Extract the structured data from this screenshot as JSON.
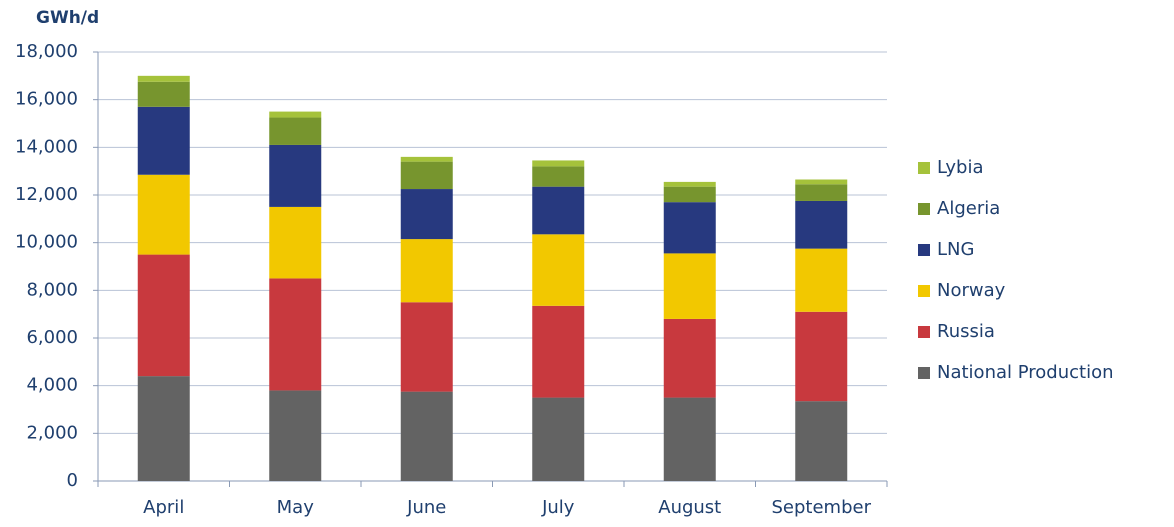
{
  "chart_data": {
    "type": "stacked-bar",
    "ylabel": "GWh/d",
    "categories": [
      "April",
      "May",
      "June",
      "July",
      "August",
      "September"
    ],
    "series": [
      {
        "name": "National Production",
        "color": "#636363",
        "values": [
          4400,
          3800,
          3750,
          3500,
          3500,
          3350
        ]
      },
      {
        "name": "Russia",
        "color": "#c8393e",
        "values": [
          5100,
          4700,
          3750,
          3850,
          3300,
          3750
        ]
      },
      {
        "name": "Norway",
        "color": "#f2c800",
        "values": [
          3350,
          3000,
          2650,
          3000,
          2750,
          2650
        ]
      },
      {
        "name": "LNG",
        "color": "#27397f",
        "values": [
          2850,
          2600,
          2100,
          2000,
          2150,
          2000
        ]
      },
      {
        "name": "Algeria",
        "color": "#77952e",
        "values": [
          1050,
          1150,
          1150,
          850,
          650,
          700
        ]
      },
      {
        "name": "Lybia",
        "color": "#a5c23b",
        "values": [
          250,
          250,
          200,
          250,
          200,
          200
        ]
      }
    ],
    "ylim": [
      0,
      18000
    ],
    "yticks": [
      0,
      {
        "value": 2000,
        "label": "2,000"
      },
      {
        "value": 4000,
        "label": "4,000"
      },
      {
        "value": 6000,
        "label": "6,000"
      },
      {
        "value": 8000,
        "label": "8,000"
      },
      {
        "value": 10000,
        "label": "10,000"
      },
      {
        "value": 12000,
        "label": "12,000"
      },
      {
        "value": 14000,
        "label": "14,000"
      },
      {
        "value": 16000,
        "label": "16,000"
      },
      {
        "value": 18000,
        "label": "18,000"
      }
    ],
    "grid": true
  }
}
